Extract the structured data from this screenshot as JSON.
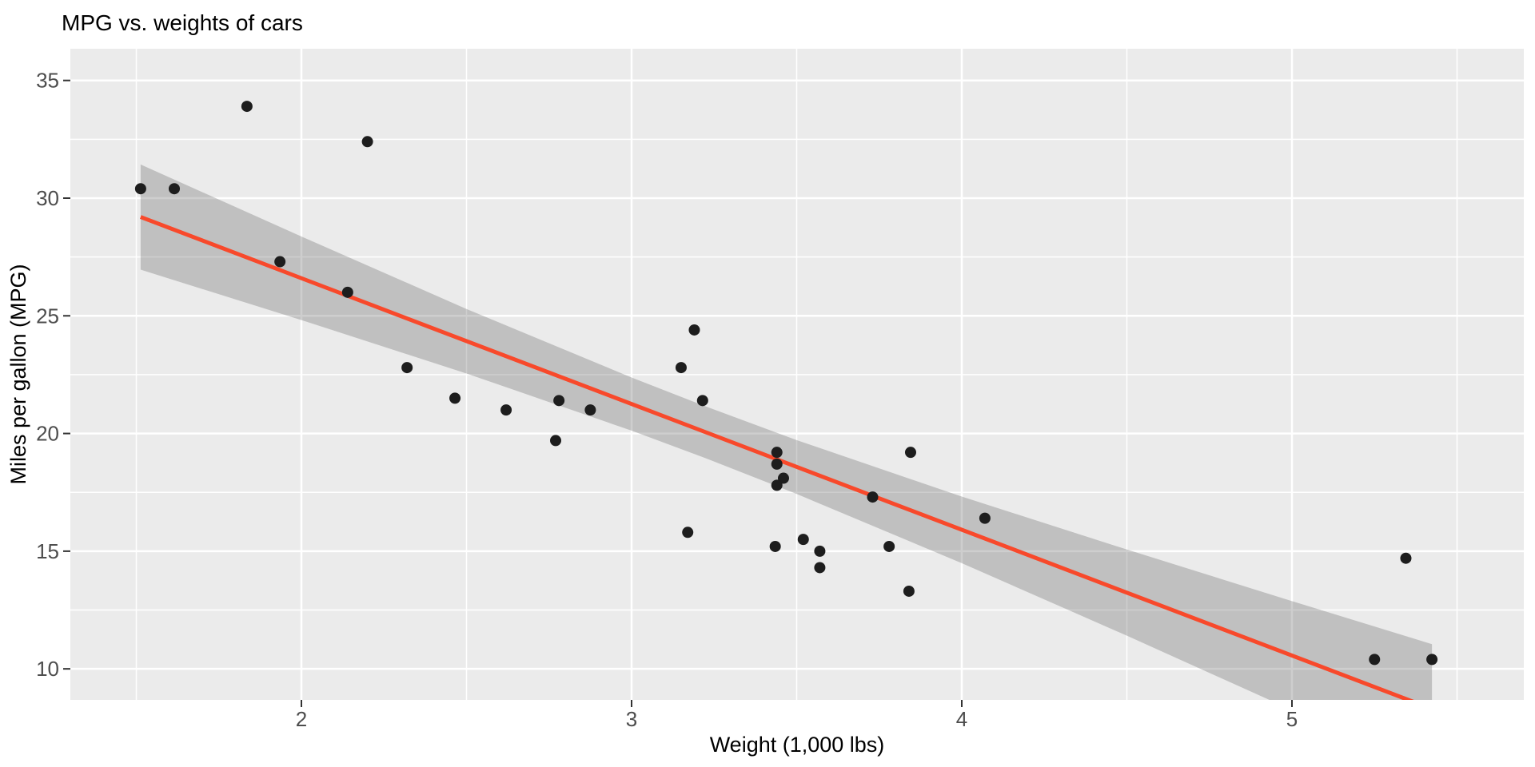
{
  "chart_data": {
    "type": "scatter",
    "title": "MPG vs. weights of cars",
    "xlabel": "Weight (1,000 lbs)",
    "ylabel": "Miles per gallon (MPG)",
    "xlim": [
      1.3002,
      5.7022
    ],
    "ylim": [
      8.6815,
      36.3475
    ],
    "grid": "on",
    "legend": "none",
    "x_ticks": [
      2,
      3,
      4,
      5
    ],
    "x_tick_labels": [
      "2",
      "3",
      "4",
      "5"
    ],
    "x_minor_ticks": [
      1.5,
      2.5,
      3.5,
      4.5,
      5.5
    ],
    "y_ticks": [
      35,
      30,
      25,
      20,
      15,
      10
    ],
    "y_tick_labels": [
      "35",
      "30",
      "25",
      "20",
      "15",
      "10"
    ],
    "y_minor_ticks": [
      32.5,
      27.5,
      22.5,
      17.5,
      12.5
    ],
    "points": [
      {
        "wt": 2.62,
        "mpg": 21.0
      },
      {
        "wt": 2.875,
        "mpg": 21.0
      },
      {
        "wt": 2.32,
        "mpg": 22.8
      },
      {
        "wt": 3.215,
        "mpg": 21.4
      },
      {
        "wt": 3.44,
        "mpg": 18.7
      },
      {
        "wt": 3.46,
        "mpg": 18.1
      },
      {
        "wt": 3.57,
        "mpg": 14.3
      },
      {
        "wt": 3.19,
        "mpg": 24.4
      },
      {
        "wt": 3.15,
        "mpg": 22.8
      },
      {
        "wt": 3.44,
        "mpg": 19.2
      },
      {
        "wt": 3.44,
        "mpg": 17.8
      },
      {
        "wt": 4.07,
        "mpg": 16.4
      },
      {
        "wt": 3.73,
        "mpg": 17.3
      },
      {
        "wt": 3.78,
        "mpg": 15.2
      },
      {
        "wt": 5.25,
        "mpg": 10.4
      },
      {
        "wt": 5.424,
        "mpg": 10.4
      },
      {
        "wt": 5.345,
        "mpg": 14.7
      },
      {
        "wt": 2.2,
        "mpg": 32.4
      },
      {
        "wt": 1.615,
        "mpg": 30.4
      },
      {
        "wt": 1.835,
        "mpg": 33.9
      },
      {
        "wt": 2.465,
        "mpg": 21.5
      },
      {
        "wt": 3.52,
        "mpg": 15.5
      },
      {
        "wt": 3.435,
        "mpg": 15.2
      },
      {
        "wt": 3.84,
        "mpg": 13.3
      },
      {
        "wt": 3.845,
        "mpg": 19.2
      },
      {
        "wt": 1.935,
        "mpg": 27.3
      },
      {
        "wt": 2.14,
        "mpg": 26.0
      },
      {
        "wt": 1.513,
        "mpg": 30.4
      },
      {
        "wt": 3.17,
        "mpg": 15.8
      },
      {
        "wt": 2.77,
        "mpg": 19.7
      },
      {
        "wt": 3.57,
        "mpg": 15.0
      },
      {
        "wt": 2.78,
        "mpg": 21.4
      }
    ],
    "regression_line": {
      "intercept": 37.285,
      "slope": -5.344,
      "x_start": 1.513,
      "x_end": 5.424,
      "y_start": 29.2,
      "y_end": 8.3
    },
    "confidence_ribbon": {
      "x": [
        1.513,
        2.0,
        2.5,
        3.0,
        3.217,
        3.5,
        4.0,
        4.5,
        5.0,
        5.424
      ],
      "upper": [
        31.43,
        28.37,
        25.29,
        22.38,
        21.19,
        19.72,
        17.32,
        15.07,
        12.88,
        11.05
      ],
      "lower": [
        26.96,
        24.82,
        22.55,
        20.12,
        18.99,
        17.43,
        14.49,
        11.41,
        8.25,
        5.55
      ]
    },
    "colors": {
      "background": "#FFFFFF",
      "panel": "#EBEBEB",
      "grid": "#FFFFFF",
      "point": "#1D1D1D",
      "smooth_line": "#F8492B",
      "ribbon": "rgba(102,102,102,0.32)",
      "tick_mark": "#333333",
      "tick_label": "#4D4D4D",
      "title_text": "#000000"
    }
  }
}
